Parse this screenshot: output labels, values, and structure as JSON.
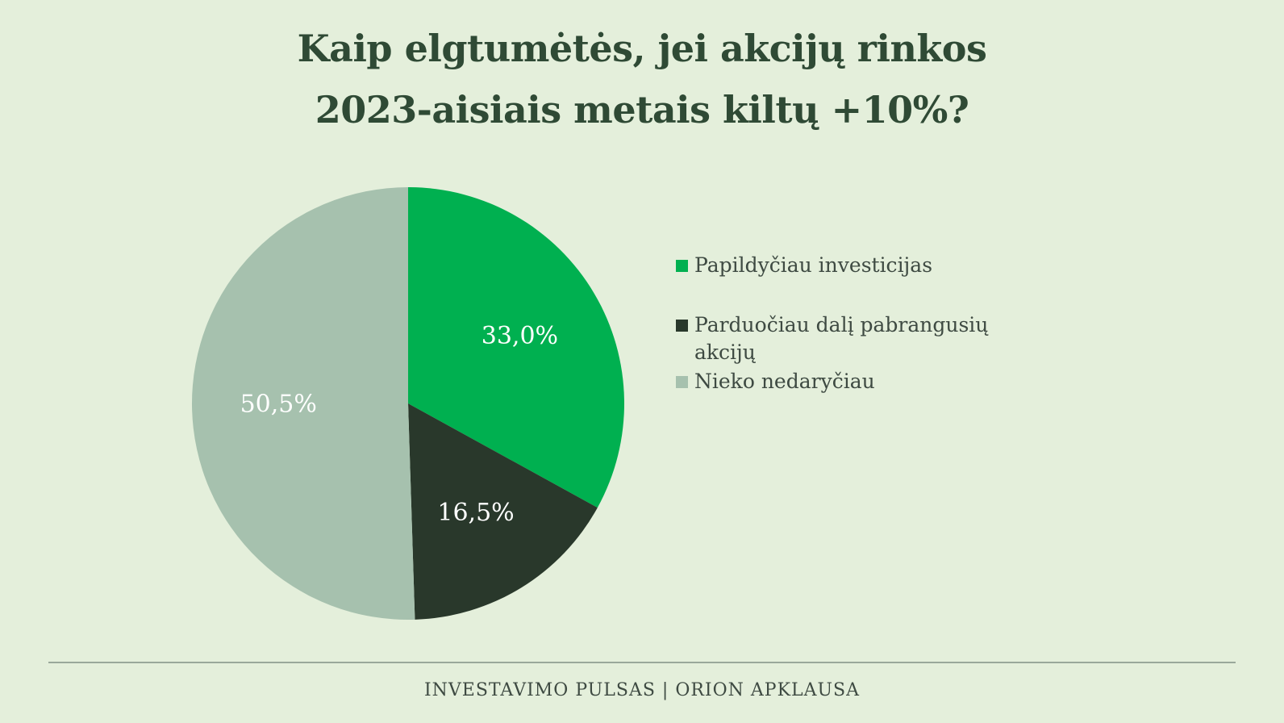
{
  "chart_data": {
    "type": "pie",
    "title_lines": [
      "Kaip elgtumėtės, jei akcijų rinkos",
      "2023-aisiais metais kiltų +10%?"
    ],
    "slices": [
      {
        "name": "Papildyčiau investicijas",
        "value": 33.0,
        "label": "33,0%",
        "color": "#00b050",
        "label_color": "#ffffff"
      },
      {
        "name": "Parduočiau dalį pabrangusių akcijų",
        "value": 16.5,
        "label": "16,5%",
        "color": "#29382b",
        "label_color": "#ffffff"
      },
      {
        "name": "Nieko nedaryčiau",
        "value": 50.5,
        "label": "50,5%",
        "color": "#a6c1ae",
        "label_color": "#ffffff"
      }
    ],
    "legend_position": "right",
    "start_angle": "top, clockwise"
  },
  "footer": {
    "text": "INVESTAVIMO PULSAS | ORION APKLAUSA"
  }
}
